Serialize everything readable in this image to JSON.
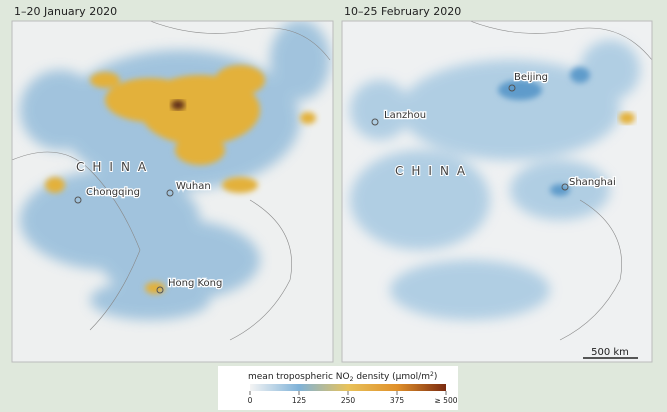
{
  "panels": [
    {
      "title": "1–20 January 2020",
      "labels": [
        "CHINA",
        "Chongqing",
        "Wuhan",
        "Hong Kong"
      ]
    },
    {
      "title": "10–25 February 2020",
      "labels": [
        "Beijing",
        "Lanzhou",
        "CHINA",
        "Shanghai"
      ],
      "scale": "500 km"
    }
  ],
  "legend": {
    "title": [
      "mean tropospheric NO",
      "2",
      " density (μmol/m",
      "2",
      ")"
    ],
    "range": [
      0,
      500
    ],
    "ticks": [
      0,
      125,
      250,
      375,
      {
        "value": 500,
        "label": "≥ 500"
      }
    ]
  }
}
